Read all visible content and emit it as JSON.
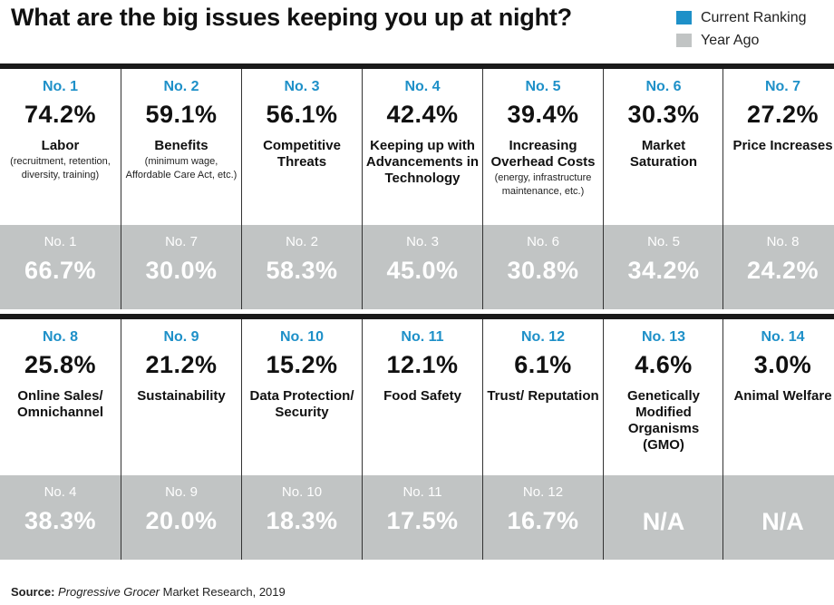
{
  "title": "What are the big issues keeping you up at night?",
  "legend": [
    {
      "label": "Current Ranking",
      "color": "#1e90c8"
    },
    {
      "label": "Year Ago",
      "color": "#c1c4c4"
    }
  ],
  "source": {
    "label": "Source:",
    "publication": "Progressive Grocer",
    "rest": " Market Research, 2019"
  },
  "chart_data": {
    "type": "table",
    "series_names": [
      "Current Ranking",
      "Year Ago"
    ],
    "rows": [
      [
        {
          "rank": "No. 1",
          "value": "74.2%",
          "issue": "Labor",
          "note": "(recruitment, retention, diversity, training)",
          "prev_rank": "No. 1",
          "prev_value": "66.7%"
        },
        {
          "rank": "No. 2",
          "value": "59.1%",
          "issue": "Benefits",
          "note": "(minimum wage, Affordable Care Act, etc.)",
          "prev_rank": "No. 7",
          "prev_value": "30.0%"
        },
        {
          "rank": "No. 3",
          "value": "56.1%",
          "issue": "Competitive Threats",
          "note": "",
          "prev_rank": "No. 2",
          "prev_value": "58.3%"
        },
        {
          "rank": "No. 4",
          "value": "42.4%",
          "issue": "Keeping up with Advancements in Technology",
          "note": "",
          "prev_rank": "No. 3",
          "prev_value": "45.0%"
        },
        {
          "rank": "No. 5",
          "value": "39.4%",
          "issue": "Increasing Overhead Costs",
          "note": "(energy, infrastructure maintenance, etc.)",
          "prev_rank": "No. 6",
          "prev_value": "30.8%"
        },
        {
          "rank": "No. 6",
          "value": "30.3%",
          "issue": "Market Saturation",
          "note": "",
          "prev_rank": "No. 5",
          "prev_value": "34.2%"
        },
        {
          "rank": "No. 7",
          "value": "27.2%",
          "issue": "Price Increases",
          "note": "",
          "prev_rank": "No. 8",
          "prev_value": "24.2%"
        }
      ],
      [
        {
          "rank": "No. 8",
          "value": "25.8%",
          "issue": "Online Sales/ Omnichannel",
          "note": "",
          "prev_rank": "No. 4",
          "prev_value": "38.3%"
        },
        {
          "rank": "No. 9",
          "value": "21.2%",
          "issue": "Sustainability",
          "note": "",
          "prev_rank": "No. 9",
          "prev_value": "20.0%"
        },
        {
          "rank": "No. 10",
          "value": "15.2%",
          "issue": "Data Protection/ Security",
          "note": "",
          "prev_rank": "No. 10",
          "prev_value": "18.3%"
        },
        {
          "rank": "No. 11",
          "value": "12.1%",
          "issue": "Food Safety",
          "note": "",
          "prev_rank": "No. 11",
          "prev_value": "17.5%"
        },
        {
          "rank": "No. 12",
          "value": "6.1%",
          "issue": "Trust/ Reputation",
          "note": "",
          "prev_rank": "No. 12",
          "prev_value": "16.7%"
        },
        {
          "rank": "No. 13",
          "value": "4.6%",
          "issue": "Genetically Modified Organisms (GMO)",
          "note": "",
          "prev_rank": "",
          "prev_value": "N/A"
        },
        {
          "rank": "No. 14",
          "value": "3.0%",
          "issue": "Animal Welfare",
          "note": "",
          "prev_rank": "",
          "prev_value": "N/A"
        }
      ]
    ]
  }
}
